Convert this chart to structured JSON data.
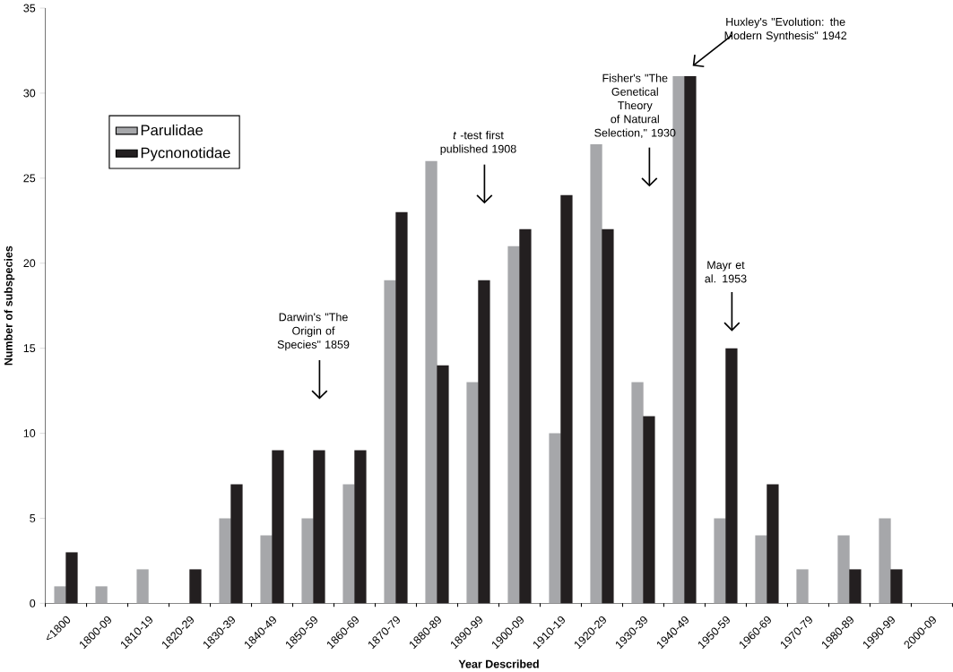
{
  "chart_data": {
    "type": "bar",
    "xlabel": "Year Described",
    "ylabel": "Number of subspecies",
    "categories": [
      "<1800",
      "1800-09",
      "1810-19",
      "1820-29",
      "1830-39",
      "1840-49",
      "1850-59",
      "1860-69",
      "1870-79",
      "1880-89",
      "1890-99",
      "1900-09",
      "1910-19",
      "1920-29",
      "1930-39",
      "1940-49",
      "1950-59",
      "1960-69",
      "1970-79",
      "1980-89",
      "1990-99",
      "2000-09"
    ],
    "series": [
      {
        "name": "Parulidae",
        "color": "#a6a7aa",
        "values": [
          1,
          1,
          2,
          0,
          5,
          4,
          5,
          7,
          19,
          26,
          13,
          21,
          10,
          27,
          13,
          31,
          5,
          4,
          2,
          4,
          5,
          0
        ]
      },
      {
        "name": "Pycnonotidae",
        "color": "#231f20",
        "values": [
          3,
          0,
          0,
          2,
          7,
          9,
          9,
          9,
          23,
          14,
          19,
          22,
          24,
          22,
          11,
          31,
          15,
          7,
          0,
          2,
          2,
          0
        ]
      }
    ],
    "ylim": [
      0,
      35
    ],
    "yticks": [
      0,
      5,
      10,
      15,
      20,
      25,
      30,
      35
    ],
    "grid": false,
    "legend": "top left",
    "annotations": [
      "Darwin's \"The Origin of Species\" 1859",
      "*t* -test first published 1908",
      "Fisher's \"The Genetical Theory of Natural Selection,\" 1930",
      "Huxley's \"Evolution: the Modern Synthesis\" 1942",
      "Mayr et al. 1953"
    ]
  }
}
